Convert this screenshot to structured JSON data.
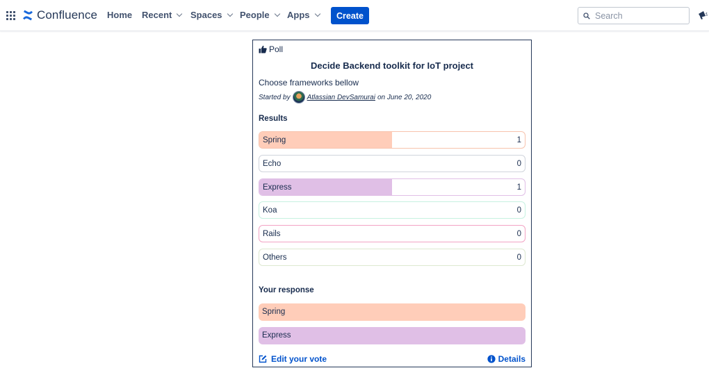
{
  "nav": {
    "logo_text": "Confluence",
    "home": "Home",
    "recent": "Recent",
    "spaces": "Spaces",
    "people": "People",
    "apps": "Apps",
    "create": "Create",
    "search_placeholder": "Search",
    "brand_color": "#0052cc"
  },
  "poll": {
    "type_label": "Poll",
    "title": "Decide Backend toolkit for IoT project",
    "description": "Choose frameworks bellow",
    "started_by_prefix": "Started by",
    "author": "Atlassian DevSamurai",
    "date_text": "on June 20, 2020",
    "results_heading": "Results",
    "results": [
      {
        "label": "Spring",
        "count": "1",
        "fraction": 0.5,
        "fill": "#ffcdb9",
        "border": "#f7c3ad"
      },
      {
        "label": "Echo",
        "count": "0",
        "fraction": 0,
        "fill": "#dfe1e6",
        "border": "#d0d4dc"
      },
      {
        "label": "Express",
        "count": "1",
        "fraction": 0.5,
        "fill": "#e0bfe6",
        "border": "#e0bfe6"
      },
      {
        "label": "Koa",
        "count": "0",
        "fraction": 0,
        "fill": "#c6f1e0",
        "border": "#c6f1e0"
      },
      {
        "label": "Rails",
        "count": "0",
        "fraction": 0,
        "fill": "#f8bfd6",
        "border": "#f3a3c4"
      },
      {
        "label": "Others",
        "count": "0",
        "fraction": 0,
        "fill": "#dde8d0",
        "border": "#dde8d0"
      }
    ],
    "response_heading": "Your response",
    "responses": [
      {
        "label": "Spring",
        "fill": "#ffcdb9"
      },
      {
        "label": "Express",
        "fill": "#e0bfe6"
      }
    ],
    "edit_vote": "Edit your vote",
    "details": "Details"
  }
}
